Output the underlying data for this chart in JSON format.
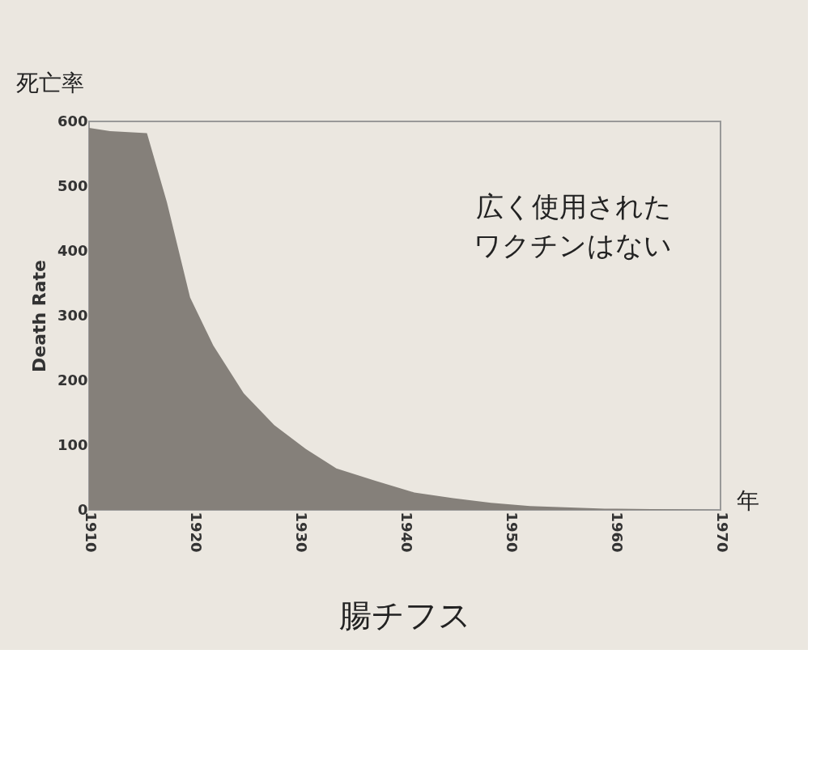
{
  "chart_data": {
    "type": "area",
    "title": "腸チフス",
    "ylabel": "Death Rate",
    "xlabel": "年",
    "annotations": [
      "死亡率",
      "広く使用された",
      "ワクチンはない"
    ],
    "x": [
      1910,
      1912,
      1915.5,
      1917.4,
      1919.6,
      1921.8,
      1924.7,
      1927.6,
      1930.6,
      1933.5,
      1937.2,
      1940.9,
      1944.6,
      1948.2,
      1951.9,
      1959,
      1965,
      1970
    ],
    "series": [
      {
        "color": "#85807a",
        "values": [
          590,
          585,
          582,
          475,
          328,
          254,
          180,
          131,
          94,
          64,
          45,
          27,
          18,
          11,
          6,
          2,
          1,
          0
        ]
      }
    ],
    "xlim": [
      1910,
      1970
    ],
    "xticks": [
      1910,
      1920,
      1930,
      1940,
      1950,
      1960,
      1970
    ],
    "ylim": [
      0,
      600
    ],
    "yticks": [
      0,
      100,
      200,
      300,
      400,
      500,
      600
    ],
    "grid": false
  }
}
